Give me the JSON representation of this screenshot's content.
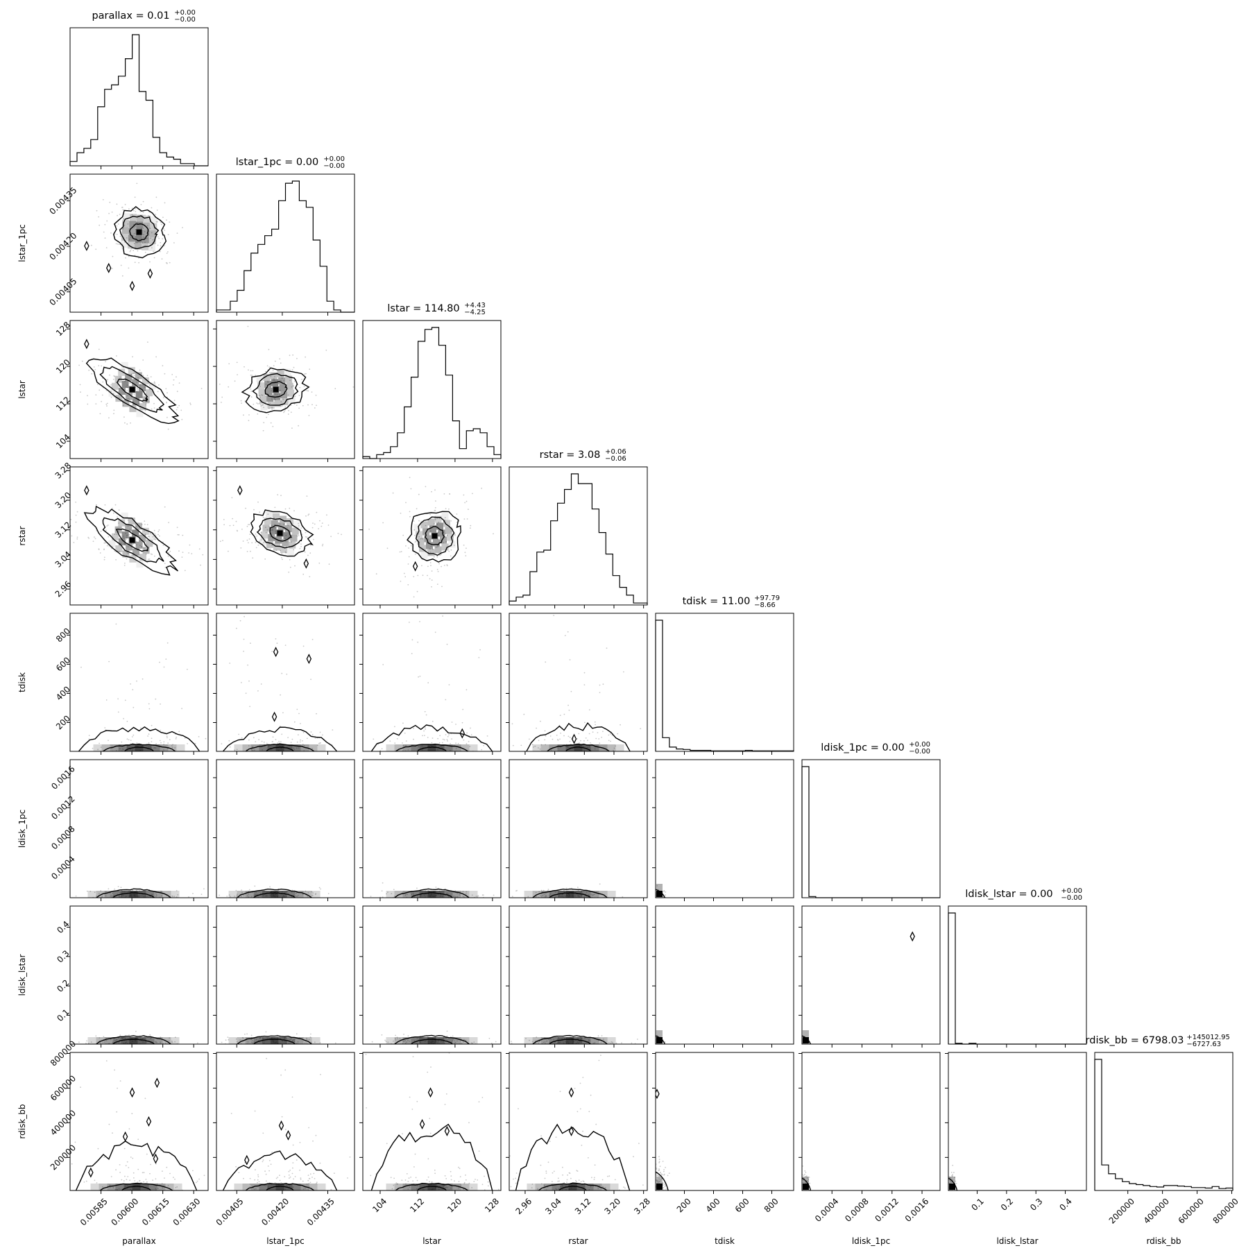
{
  "chart_data": {
    "type": "corner",
    "params": [
      "parallax",
      "lstar_1pc",
      "lstar",
      "rstar",
      "tdisk",
      "ldisk_1pc",
      "ldisk_lstar",
      "rdisk_bb"
    ],
    "axis_labels": [
      "parallax",
      "lstar_1pc",
      "lstar",
      "rstar",
      "tdisk",
      "ldisk_1pc",
      "ldisk_lstar",
      "rdisk_bb"
    ],
    "titles": [
      {
        "param": "parallax",
        "label": "parallax = 0.01",
        "plus": "+0.00",
        "minus": "−0.00"
      },
      {
        "param": "lstar_1pc",
        "label": "lstar_1pc = 0.00",
        "plus": "+0.00",
        "minus": "−0.00"
      },
      {
        "param": "lstar",
        "label": "lstar = 114.80",
        "plus": "+4.43",
        "minus": "−4.25"
      },
      {
        "param": "rstar",
        "label": "rstar = 3.08",
        "plus": "+0.06",
        "minus": "−0.06"
      },
      {
        "param": "tdisk",
        "label": "tdisk = 11.00",
        "plus": "+97.79",
        "minus": "−8.66"
      },
      {
        "param": "ldisk_1pc",
        "label": "ldisk_1pc = 0.00",
        "plus": "+0.00",
        "minus": "−0.00"
      },
      {
        "param": "ldisk_lstar",
        "label": "ldisk_lstar = 0.00",
        "plus": "+0.00",
        "minus": "−0.00"
      },
      {
        "param": "rdisk_bb",
        "label": "rdisk_bb = 6798.03",
        "plus": "+145012.95",
        "minus": "−6727.63"
      }
    ],
    "ranges": [
      [
        0.0057,
        0.00637
      ],
      [
        0.003983,
        0.004438
      ],
      [
        100.3,
        129.8
      ],
      [
        2.917,
        3.29
      ],
      [
        2.4,
        950
      ],
      [
        2e-07,
        0.00184
      ],
      [
        0.0018,
        0.472
      ],
      [
        9000,
        806000
      ]
    ],
    "ticks": [
      {
        "values": [
          0.00585,
          0.006,
          0.00615,
          0.0063
        ],
        "labels": [
          "0.00585",
          "0.00600",
          "0.00615",
          "0.00630"
        ]
      },
      {
        "values": [
          0.00405,
          0.0042,
          0.00435
        ],
        "labels": [
          "0.00405",
          "0.00420",
          "0.00435"
        ]
      },
      {
        "values": [
          104,
          112,
          120,
          128
        ],
        "labels": [
          "104",
          "112",
          "120",
          "128"
        ]
      },
      {
        "values": [
          2.96,
          3.04,
          3.12,
          3.2,
          3.28
        ],
        "labels": [
          "2.96",
          "3.04",
          "3.12",
          "3.20",
          "3.28"
        ]
      },
      {
        "values": [
          200,
          400,
          600,
          800
        ],
        "labels": [
          "200",
          "400",
          "600",
          "800"
        ]
      },
      {
        "values": [
          0.0004,
          0.0008,
          0.0012,
          0.0016
        ],
        "labels": [
          "0.0004",
          "0.0008",
          "0.0012",
          "0.0016"
        ]
      },
      {
        "values": [
          0.1,
          0.2,
          0.3,
          0.4
        ],
        "labels": [
          "0.1",
          "0.2",
          "0.3",
          "0.4"
        ]
      },
      {
        "values": [
          200000,
          400000,
          600000,
          800000
        ],
        "labels": [
          "200000",
          "400000",
          "600000",
          "800000"
        ]
      }
    ],
    "histograms": [
      {
        "param": "parallax",
        "bin_edges_frac": [
          0,
          0.05,
          0.1,
          0.15,
          0.2,
          0.25,
          0.3,
          0.35,
          0.4,
          0.45,
          0.5,
          0.55,
          0.6,
          0.65,
          0.7,
          0.75,
          0.8,
          0.85,
          0.9,
          0.95,
          1.0
        ],
        "counts": [
          2,
          6,
          8,
          12,
          27,
          35,
          37,
          41,
          49,
          60,
          34,
          30,
          13,
          6,
          4,
          3,
          1,
          1,
          0,
          0
        ]
      },
      {
        "param": "lstar_1pc",
        "bin_edges_frac": [
          0,
          0.05,
          0.1,
          0.15,
          0.2,
          0.25,
          0.3,
          0.35,
          0.4,
          0.45,
          0.5,
          0.55,
          0.6,
          0.65,
          0.7,
          0.75,
          0.8,
          0.85,
          0.9,
          0.95,
          1.0
        ],
        "counts": [
          1,
          1,
          5,
          10,
          19,
          27,
          31,
          35,
          38,
          51,
          59,
          60,
          51,
          48,
          33,
          21,
          5,
          1,
          0,
          0
        ]
      },
      {
        "param": "lstar",
        "bin_edges_frac": [
          0,
          0.05,
          0.1,
          0.15,
          0.2,
          0.25,
          0.3,
          0.35,
          0.4,
          0.45,
          0.5,
          0.55,
          0.6,
          0.65,
          0.7,
          0.75,
          0.8,
          0.85,
          0.9,
          0.95,
          1.0
        ],
        "counts": [
          1,
          0,
          2,
          3,
          6,
          13,
          26,
          41,
          59,
          65,
          66,
          57,
          42,
          19,
          5,
          14,
          15,
          13,
          6,
          2
        ]
      },
      {
        "param": "rstar",
        "bin_edges_frac": [
          0,
          0.05,
          0.1,
          0.15,
          0.2,
          0.25,
          0.3,
          0.35,
          0.4,
          0.45,
          0.5,
          0.55,
          0.6,
          0.65,
          0.7,
          0.75,
          0.8,
          0.85,
          0.9,
          0.95,
          1.0
        ],
        "counts": [
          2,
          4,
          5,
          17,
          27,
          28,
          43,
          52,
          59,
          67,
          62,
          62,
          49,
          37,
          26,
          15,
          9,
          5,
          1,
          1
        ]
      },
      {
        "param": "tdisk",
        "bin_edges_frac": [
          0,
          0.05,
          0.1,
          0.15,
          0.2,
          0.25,
          0.3,
          0.35,
          0.4,
          0.45,
          0.5,
          0.55,
          0.6,
          0.65,
          0.7,
          0.75,
          0.8,
          0.85,
          0.9,
          0.95,
          1.0
        ],
        "counts": [
          278,
          29,
          9,
          5,
          4,
          2,
          2,
          2,
          1,
          1,
          1,
          1,
          1,
          2,
          1,
          1,
          1,
          1,
          1,
          1
        ]
      },
      {
        "param": "ldisk_1pc",
        "bin_edges_frac": [
          0,
          0.05,
          0.1,
          0.15,
          0.2,
          0.25,
          0.3,
          0.35,
          0.4,
          0.45,
          0.5,
          0.55,
          0.6,
          0.65,
          0.7,
          0.75,
          0.8,
          0.85,
          0.9,
          0.95,
          1.0
        ],
        "counts": [
          340,
          3,
          0,
          0,
          0,
          0,
          0,
          0,
          0,
          0,
          0,
          0,
          0,
          0,
          0,
          0,
          0,
          0,
          0,
          0
        ]
      },
      {
        "param": "ldisk_lstar",
        "bin_edges_frac": [
          0,
          0.05,
          0.1,
          0.15,
          0.2,
          0.25,
          0.3,
          0.35,
          0.4,
          0.45,
          0.5,
          0.55,
          0.6,
          0.65,
          0.7,
          0.75,
          0.8,
          0.85,
          0.9,
          0.95,
          1.0
        ],
        "counts": [
          340,
          2,
          0,
          2,
          0,
          0,
          0,
          0,
          0,
          0,
          0,
          0,
          0,
          0,
          0,
          0,
          0,
          0,
          0,
          0
        ]
      },
      {
        "param": "rdisk_bb",
        "bin_edges_frac": [
          0,
          0.05,
          0.1,
          0.15,
          0.2,
          0.25,
          0.3,
          0.35,
          0.4,
          0.45,
          0.5,
          0.55,
          0.6,
          0.65,
          0.7,
          0.75,
          0.8,
          0.85,
          0.9,
          0.95,
          1.0
        ],
        "counts": [
          267,
          52,
          34,
          24,
          18,
          14,
          12,
          10,
          8,
          7,
          10,
          10,
          9,
          8,
          6,
          6,
          5,
          8,
          4,
          5
        ]
      }
    ],
    "pair_panels": [
      {
        "x": "parallax",
        "y": "lstar_1pc",
        "center": [
          0.5,
          0.58
        ],
        "spread": [
          0.22,
          0.2
        ],
        "corr": -0.15,
        "style": "blob",
        "outliers": [
          [
            0.12,
            0.48
          ],
          [
            0.28,
            0.32
          ],
          [
            0.58,
            0.28
          ],
          [
            0.45,
            0.19
          ]
        ]
      },
      {
        "x": "parallax",
        "y": "lstar",
        "center": [
          0.45,
          0.5
        ],
        "spread": [
          0.32,
          0.12
        ],
        "corr": -0.92,
        "style": "blob",
        "outliers": [
          [
            0.12,
            0.83
          ]
        ]
      },
      {
        "x": "lstar_1pc",
        "y": "lstar",
        "center": [
          0.43,
          0.5
        ],
        "spread": [
          0.26,
          0.18
        ],
        "corr": 0.3,
        "style": "blob",
        "outliers": []
      },
      {
        "x": "parallax",
        "y": "rstar",
        "center": [
          0.45,
          0.47
        ],
        "spread": [
          0.32,
          0.12
        ],
        "corr": -0.92,
        "style": "blob",
        "outliers": [
          [
            0.12,
            0.83
          ]
        ]
      },
      {
        "x": "lstar_1pc",
        "y": "rstar",
        "center": [
          0.46,
          0.52
        ],
        "spread": [
          0.27,
          0.17
        ],
        "corr": -0.45,
        "style": "blob",
        "outliers": [
          [
            0.17,
            0.83
          ],
          [
            0.65,
            0.3
          ]
        ]
      },
      {
        "x": "lstar",
        "y": "rstar",
        "center": [
          0.52,
          0.5
        ],
        "spread": [
          0.22,
          0.22
        ],
        "corr": 0.5,
        "style": "blob",
        "outliers": [
          [
            0.38,
            0.28
          ]
        ]
      },
      {
        "x": "parallax",
        "y": "tdisk",
        "center": [
          0.5,
          0.04
        ],
        "spread": [
          0.35,
          0.07
        ],
        "corr": 0.0,
        "style": "floor",
        "peak": 0.17,
        "outliers": []
      },
      {
        "x": "lstar_1pc",
        "y": "tdisk",
        "center": [
          0.46,
          0.04
        ],
        "spread": [
          0.33,
          0.07
        ],
        "corr": 0.0,
        "style": "floor",
        "peak": 0.15,
        "outliers": [
          [
            0.42,
            0.25
          ],
          [
            0.43,
            0.72
          ],
          [
            0.67,
            0.67
          ]
        ]
      },
      {
        "x": "lstar",
        "y": "tdisk",
        "center": [
          0.5,
          0.04
        ],
        "spread": [
          0.35,
          0.07
        ],
        "corr": 0.0,
        "style": "floor",
        "peak": 0.17,
        "outliers": [
          [
            0.72,
            0.13
          ]
        ]
      },
      {
        "x": "rstar",
        "y": "tdisk",
        "center": [
          0.5,
          0.04
        ],
        "spread": [
          0.3,
          0.07
        ],
        "corr": 0.0,
        "style": "floor",
        "peak": 0.18,
        "outliers": [
          [
            0.47,
            0.09
          ]
        ]
      },
      {
        "x": "parallax",
        "y": "ldisk_1pc",
        "center": [
          0.46,
          0.02
        ],
        "spread": [
          0.3,
          0.03
        ],
        "corr": 0.0,
        "style": "flat",
        "outliers": []
      },
      {
        "x": "lstar_1pc",
        "y": "ldisk_1pc",
        "center": [
          0.42,
          0.02
        ],
        "spread": [
          0.3,
          0.03
        ],
        "corr": 0.0,
        "style": "flat",
        "outliers": []
      },
      {
        "x": "lstar",
        "y": "ldisk_1pc",
        "center": [
          0.5,
          0.02
        ],
        "spread": [
          0.3,
          0.03
        ],
        "corr": 0.0,
        "style": "flat",
        "outliers": []
      },
      {
        "x": "rstar",
        "y": "ldisk_1pc",
        "center": [
          0.44,
          0.02
        ],
        "spread": [
          0.3,
          0.03
        ],
        "corr": 0.0,
        "style": "flat",
        "outliers": []
      },
      {
        "x": "tdisk",
        "y": "ldisk_1pc",
        "center": [
          0.02,
          0.02
        ],
        "spread": [
          0.06,
          0.04
        ],
        "corr": 0.0,
        "style": "cornerblob",
        "outliers": []
      },
      {
        "x": "parallax",
        "y": "ldisk_lstar",
        "center": [
          0.46,
          0.02
        ],
        "spread": [
          0.3,
          0.03
        ],
        "corr": 0.0,
        "style": "flat",
        "outliers": []
      },
      {
        "x": "lstar_1pc",
        "y": "ldisk_lstar",
        "center": [
          0.42,
          0.02
        ],
        "spread": [
          0.3,
          0.03
        ],
        "corr": 0.0,
        "style": "flat",
        "outliers": []
      },
      {
        "x": "lstar",
        "y": "ldisk_lstar",
        "center": [
          0.5,
          0.02
        ],
        "spread": [
          0.3,
          0.03
        ],
        "corr": 0.0,
        "style": "flat",
        "outliers": []
      },
      {
        "x": "rstar",
        "y": "ldisk_lstar",
        "center": [
          0.44,
          0.02
        ],
        "spread": [
          0.3,
          0.03
        ],
        "corr": 0.0,
        "style": "flat",
        "outliers": []
      },
      {
        "x": "tdisk",
        "y": "ldisk_lstar",
        "center": [
          0.02,
          0.02
        ],
        "spread": [
          0.06,
          0.04
        ],
        "corr": 0.0,
        "style": "cornerblob",
        "outliers": []
      },
      {
        "x": "ldisk_1pc",
        "y": "ldisk_lstar",
        "center": [
          0.02,
          0.02
        ],
        "spread": [
          0.03,
          0.03
        ],
        "corr": 0.0,
        "style": "cornerblob",
        "outliers": [
          [
            0.8,
            0.78
          ]
        ]
      },
      {
        "x": "parallax",
        "y": "rdisk_bb",
        "center": [
          0.48,
          0.04
        ],
        "spread": [
          0.35,
          0.08
        ],
        "corr": 0.0,
        "style": "floor",
        "peak": 0.32,
        "outliers": [
          [
            0.45,
            0.71
          ],
          [
            0.63,
            0.78
          ],
          [
            0.57,
            0.5
          ],
          [
            0.4,
            0.39
          ],
          [
            0.62,
            0.23
          ],
          [
            0.15,
            0.13
          ]
        ]
      },
      {
        "x": "lstar_1pc",
        "y": "rdisk_bb",
        "center": [
          0.46,
          0.04
        ],
        "spread": [
          0.33,
          0.08
        ],
        "corr": 0.0,
        "style": "floor",
        "peak": 0.25,
        "outliers": [
          [
            0.47,
            0.47
          ],
          [
            0.52,
            0.4
          ],
          [
            0.22,
            0.22
          ]
        ]
      },
      {
        "x": "lstar",
        "y": "rdisk_bb",
        "center": [
          0.5,
          0.04
        ],
        "spread": [
          0.35,
          0.08
        ],
        "corr": 0.0,
        "style": "floor",
        "peak": 0.45,
        "outliers": [
          [
            0.49,
            0.71
          ],
          [
            0.43,
            0.48
          ],
          [
            0.61,
            0.43
          ]
        ]
      },
      {
        "x": "rstar",
        "y": "rdisk_bb",
        "center": [
          0.46,
          0.04
        ],
        "spread": [
          0.33,
          0.08
        ],
        "corr": 0.0,
        "style": "floor",
        "peak": 0.45,
        "outliers": [
          [
            0.45,
            0.71
          ],
          [
            0.45,
            0.43
          ]
        ]
      },
      {
        "x": "tdisk",
        "y": "rdisk_bb",
        "center": [
          0.02,
          0.05
        ],
        "spread": [
          0.08,
          0.15
        ],
        "corr": 0.0,
        "style": "cornerblob",
        "outliers": [
          [
            0.01,
            0.7
          ]
        ]
      },
      {
        "x": "ldisk_1pc",
        "y": "rdisk_bb",
        "center": [
          0.02,
          0.04
        ],
        "spread": [
          0.05,
          0.1
        ],
        "corr": 0.0,
        "style": "cornerblob",
        "outliers": []
      },
      {
        "x": "ldisk_lstar",
        "y": "rdisk_bb",
        "center": [
          0.02,
          0.04
        ],
        "spread": [
          0.05,
          0.1
        ],
        "corr": 0.0,
        "style": "cornerblob",
        "outliers": []
      }
    ],
    "colors": {
      "line": "#000000",
      "density": "#000000",
      "points": "#c8c8c8"
    },
    "grid": false
  }
}
